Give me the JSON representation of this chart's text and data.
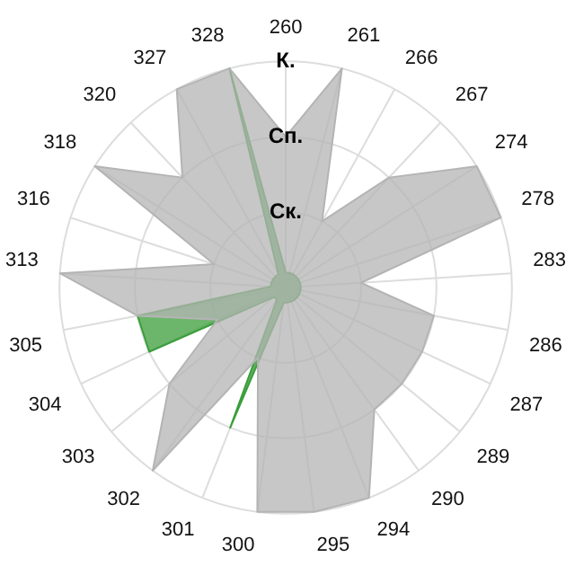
{
  "chart_data": {
    "type": "radar",
    "categories": [
      "260",
      "261",
      "266",
      "267",
      "274",
      "278",
      "283",
      "286",
      "287",
      "289",
      "290",
      "294",
      "295",
      "300",
      "301",
      "302",
      "303",
      "304",
      "305",
      "313",
      "316",
      "318",
      "320",
      "327",
      "328"
    ],
    "series": [
      {
        "color": "#b4b4b4",
        "values": [
          2,
          3,
          1,
          2,
          3,
          3,
          1,
          2,
          2,
          2,
          2,
          3,
          3,
          3,
          1,
          3,
          2,
          1,
          2,
          3,
          1,
          3,
          2,
          3,
          3
        ]
      },
      {
        "color": "#3a9e3a",
        "values": [
          0.2,
          0.2,
          0.2,
          0.2,
          0.2,
          0.2,
          0.2,
          0.2,
          0.2,
          0.2,
          0.2,
          0.2,
          0.2,
          0.2,
          2,
          0.2,
          0.2,
          2,
          2,
          0.2,
          0.2,
          0.2,
          0.2,
          0.2,
          3
        ]
      }
    ],
    "ylim": [
      0,
      3
    ],
    "yticks": [
      {
        "value": 1,
        "label": "Ск."
      },
      {
        "value": 2,
        "label": "Сп."
      },
      {
        "value": 3,
        "label": "К."
      }
    ],
    "grid": true,
    "legend": false,
    "marker": "none"
  }
}
